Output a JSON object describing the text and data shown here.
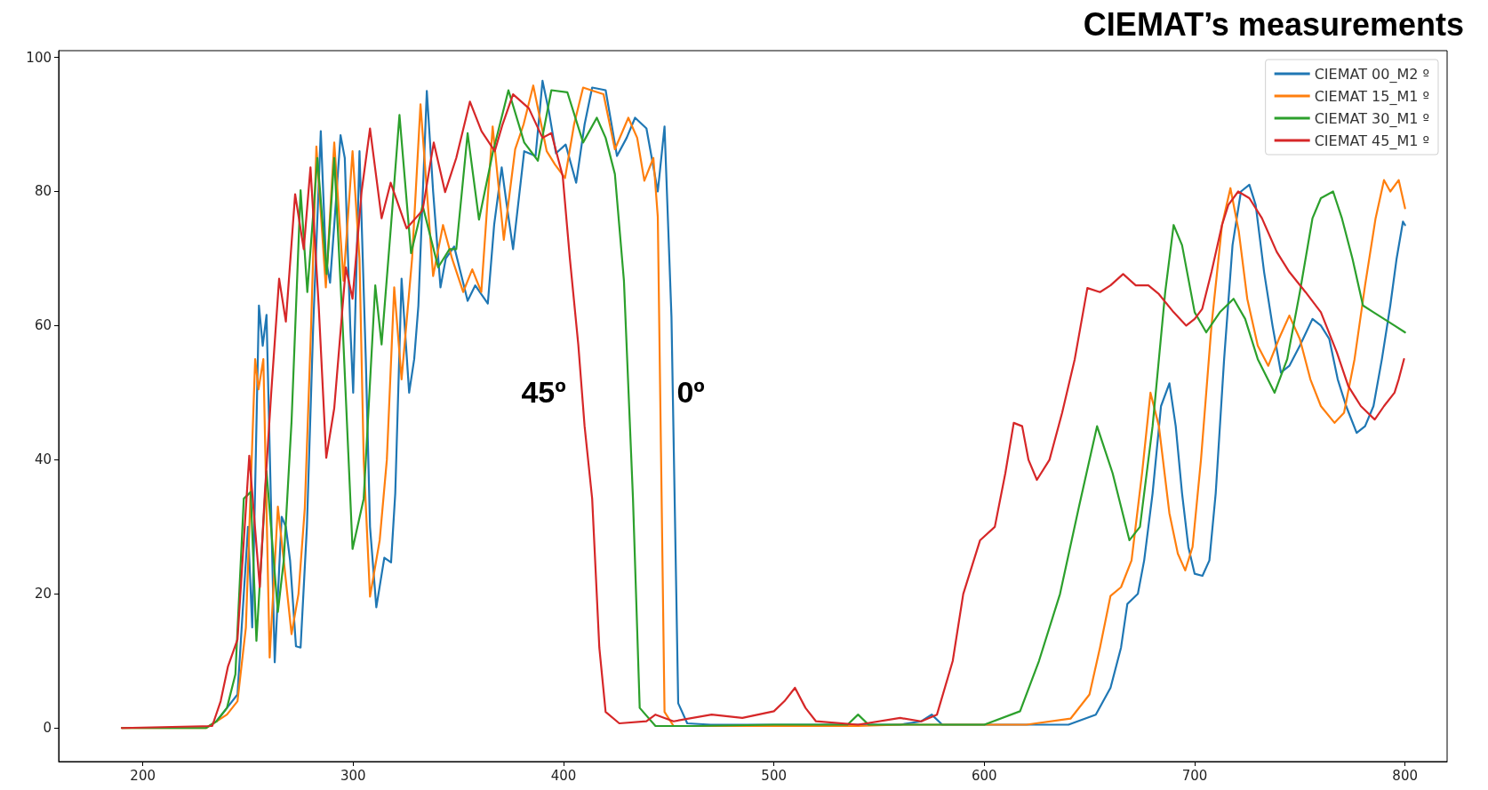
{
  "chart_data": {
    "type": "line",
    "title": "CIEMAT’s measurements",
    "xlim": [
      160,
      820
    ],
    "ylim": [
      -5,
      101
    ],
    "xticks": [
      200,
      300,
      400,
      500,
      600,
      700,
      800
    ],
    "yticks": [
      0,
      20,
      40,
      60,
      80,
      100
    ],
    "grid": false,
    "legend": "top right",
    "marker": "none",
    "line_style": "solid",
    "annotations": [
      "45º",
      "0º"
    ],
    "series": [
      {
        "name": "CIEMAT 00_M2 º",
        "color": "#1f77b4",
        "x": [
          235,
          240,
          245,
          248,
          250,
          252,
          255.2,
          257,
          258.8,
          262.7,
          266,
          268,
          270,
          272.8,
          275,
          278,
          281,
          284.6,
          287,
          289,
          291,
          294,
          296,
          298.6,
          300,
          303,
          306,
          308,
          311,
          314.8,
          318,
          320,
          323,
          326.6,
          329,
          331,
          335,
          338,
          341.5,
          344,
          348,
          351,
          354.4,
          358,
          364,
          367,
          370.6,
          373,
          376,
          381.3,
          386.7,
          390,
          393,
          396.4,
          401,
          406,
          410,
          413.6,
          420,
          425.4,
          430,
          434,
          439.4,
          444.8,
          448,
          451.3,
          454.5,
          458.8,
          470,
          500,
          520,
          540,
          560,
          570,
          575,
          580,
          600,
          620,
          640,
          653,
          660,
          665,
          668,
          673,
          676,
          680,
          684,
          688,
          691,
          694,
          697,
          700,
          703.7,
          707,
          710,
          714,
          718,
          722,
          726,
          729,
          733,
          737,
          741,
          745,
          750,
          756,
          760,
          764,
          768,
          772,
          777,
          781,
          785,
          789,
          793,
          796,
          799,
          800
        ],
        "values": [
          1,
          3,
          5,
          20,
          30,
          15,
          63,
          57,
          61.6,
          9.8,
          31.5,
          30,
          25,
          12.2,
          12,
          30,
          60,
          89,
          70,
          66.4,
          75,
          88.4,
          85,
          60,
          50,
          86,
          55,
          30,
          18,
          25.4,
          24.7,
          35,
          67,
          50,
          55,
          63,
          95,
          80,
          65.7,
          70,
          71.8,
          68,
          63.7,
          66,
          63.3,
          75,
          83.6,
          78,
          71.4,
          86,
          85.3,
          96.5,
          92,
          85.7,
          87,
          81.3,
          90,
          95.5,
          95.1,
          85.3,
          88,
          91,
          89.4,
          80,
          89.7,
          61.3,
          3.7,
          0.7,
          0.5,
          0.5,
          0.5,
          0.5,
          0.5,
          1,
          2,
          0.5,
          0.5,
          0.5,
          0.5,
          2,
          6,
          12,
          18.5,
          20,
          25,
          35,
          48,
          51.4,
          45,
          35,
          27,
          23,
          22.7,
          25,
          35,
          55,
          72,
          80,
          81,
          78,
          68,
          60,
          53,
          54,
          57,
          61,
          60,
          58,
          52,
          48,
          44,
          45,
          48,
          55,
          63,
          70,
          75.5,
          75
        ]
      },
      {
        "name": "CIEMAT 15_M1 º",
        "color": "#ff7f0e",
        "x": [
          190,
          230,
          235,
          240,
          245,
          249,
          253.4,
          255,
          257.3,
          260.3,
          264.2,
          267,
          270.7,
          274,
          277,
          280,
          282.5,
          287,
          291,
          295.4,
          299.7,
          303,
          305,
          308,
          312.6,
          316,
          319.5,
          323,
          328,
          332,
          338,
          342.7,
          347,
          352.3,
          356.6,
          360.9,
          366.3,
          371.6,
          377,
          381,
          385.6,
          392,
          396,
          400.7,
          405,
          409.3,
          414,
          419,
          424.4,
          430.8,
          435,
          438.4,
          442.7,
          444.8,
          448,
          452.3,
          470,
          500,
          520,
          540,
          560,
          580,
          600,
          620,
          641,
          650,
          655,
          660,
          665,
          670,
          675,
          679,
          683,
          688,
          692,
          695.5,
          699,
          703,
          708,
          713,
          717,
          721,
          725,
          730,
          735,
          740,
          745,
          750,
          755,
          760,
          766.5,
          771,
          776,
          781,
          786,
          790,
          793,
          797,
          800
        ],
        "values": [
          0,
          0,
          1,
          2,
          4,
          15,
          55,
          50.5,
          55,
          10.5,
          33,
          25,
          14,
          20,
          32.8,
          60,
          86.7,
          65.7,
          87.3,
          66.7,
          86,
          70,
          40,
          19.6,
          28,
          40,
          65.7,
          52,
          70,
          93,
          67.4,
          75,
          70,
          65,
          68.4,
          65,
          89.7,
          72.8,
          86.3,
          90,
          95.8,
          86,
          84,
          82,
          90,
          95.5,
          95,
          94.5,
          86.3,
          91,
          88,
          81.6,
          85,
          76.2,
          2.4,
          0.3,
          0.3,
          0.3,
          0.3,
          0.3,
          0.5,
          0.5,
          0.5,
          0.5,
          1.4,
          5,
          12,
          19.7,
          21,
          25,
          38,
          50,
          45,
          32,
          26,
          23.5,
          27,
          40,
          60,
          75,
          80.5,
          74,
          64,
          57,
          54,
          58,
          61.5,
          58,
          52,
          48,
          45.5,
          47,
          55,
          66,
          76,
          81.7,
          80,
          81.7,
          77.5
        ]
      },
      {
        "name": "CIEMAT 30_M1 º",
        "color": "#2ca02c",
        "x": [
          190,
          230,
          235,
          240,
          244,
          248,
          251.3,
          254,
          258.8,
          264.2,
          267,
          270.7,
          275,
          278.2,
          283,
          287.4,
          291,
          295,
          299.7,
          305,
          310.5,
          313.5,
          318,
          322,
          327.5,
          333,
          340.4,
          345.8,
          349,
          354.4,
          359.8,
          366.3,
          373.8,
          381.3,
          387.8,
          394.2,
          401.8,
          409.3,
          415.8,
          420,
          424.4,
          428.7,
          433,
          436.2,
          443.7,
          461,
          500,
          520,
          535,
          540,
          545,
          560,
          600,
          617,
          626,
          636,
          645,
          653.6,
          661,
          669,
          674,
          680,
          686,
          690,
          694,
          700,
          705.5,
          712,
          718.5,
          724,
          730,
          738,
          744,
          750,
          756,
          760,
          765.8,
          770,
          775,
          780,
          785,
          790,
          795,
          800
        ],
        "values": [
          0,
          0,
          1,
          3,
          8,
          34.2,
          35.2,
          13,
          38.3,
          17.3,
          25,
          45.7,
          80.2,
          65,
          85,
          67.7,
          85,
          60,
          26.7,
          34.2,
          66,
          57.2,
          75,
          91.4,
          70.8,
          77.9,
          68.7,
          71.4,
          71.4,
          88.7,
          75.8,
          85.7,
          95.1,
          87.3,
          84.6,
          95.1,
          94.8,
          87.3,
          91,
          88,
          82.6,
          66.7,
          34.2,
          3,
          0.3,
          0.3,
          0.5,
          0.5,
          0.5,
          2,
          0.5,
          0.5,
          0.5,
          2.5,
          10,
          20,
          33,
          45,
          38,
          28,
          30,
          45,
          65,
          75,
          72,
          62,
          59,
          62,
          64,
          61,
          55,
          50,
          55,
          65,
          76,
          79,
          80,
          76,
          70,
          63,
          62,
          61,
          60,
          59
        ]
      },
      {
        "name": "CIEMAT 45_M1 º",
        "color": "#d62728",
        "x": [
          190,
          233,
          237,
          240.5,
          245,
          250.6,
          255.6,
          258,
          261,
          264.8,
          268,
          272.4,
          276.5,
          279.7,
          283.6,
          287.2,
          291,
          296.5,
          299.7,
          304,
          308,
          313.5,
          317.8,
          325.4,
          333,
          338.3,
          343.7,
          349,
          355.5,
          361,
          367.3,
          371,
          376,
          383.5,
          390,
          394.2,
          399.6,
          403,
          407,
          410,
          413.6,
          417,
          420,
          426.5,
          439.4,
          443.7,
          452.3,
          470.4,
          485,
          500,
          505,
          510,
          515,
          520,
          540,
          560,
          570,
          577.5,
          585,
          590,
          598,
          605,
          610,
          614,
          618,
          621,
          625,
          631,
          637,
          643,
          649,
          655,
          660,
          666,
          672,
          678,
          683,
          690,
          696,
          700,
          703.6,
          708,
          713,
          716,
          720.7,
          726,
          732,
          739,
          745,
          752.7,
          760,
          767.6,
          773,
          779,
          785.6,
          790,
          795,
          797,
          799.5
        ],
        "values": [
          0,
          0.3,
          4,
          9.2,
          13.2,
          40.6,
          21,
          35,
          49.8,
          67,
          60.6,
          79.6,
          71.4,
          83.6,
          63,
          40.3,
          47.7,
          68.7,
          64,
          80,
          89.4,
          76,
          81.3,
          74.5,
          77.2,
          87.3,
          79.9,
          85,
          93.4,
          89,
          86,
          90,
          94.5,
          92.4,
          88,
          88.7,
          82.3,
          70,
          57.2,
          45,
          34.2,
          12,
          2.4,
          0.7,
          1,
          2,
          1,
          2,
          1.5,
          2.5,
          4,
          6,
          3,
          1,
          0.5,
          1.5,
          1,
          2,
          10,
          20,
          28,
          30,
          38,
          45.5,
          45,
          40,
          37,
          40,
          47,
          55,
          65.6,
          65,
          66,
          67.7,
          66,
          66,
          64.7,
          62,
          60,
          61,
          62.5,
          68,
          75,
          78,
          80,
          79,
          76,
          71,
          68,
          65,
          62,
          56,
          51,
          48,
          46,
          48,
          50,
          52,
          55
        ]
      }
    ]
  }
}
